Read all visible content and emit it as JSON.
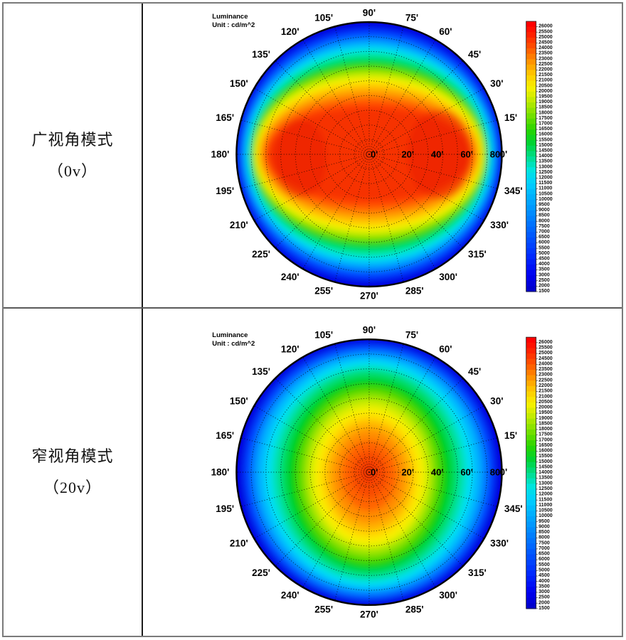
{
  "table": {
    "rows": [
      {
        "mode_label_line1": "广视角模式",
        "mode_label_line2": "（0v）"
      },
      {
        "mode_label_line1": "窄视角模式",
        "mode_label_line2": "（20v）"
      }
    ]
  },
  "chart_data": [
    {
      "type": "heatmap",
      "projection": "polar",
      "mode": "wide-viewing-angle-0v",
      "title": "Luminance",
      "unit_label": "Unit : cd/m^2",
      "angle_step_deg": 15,
      "angle_tick_labels": [
        "0'",
        "15'",
        "30'",
        "45'",
        "60'",
        "75'",
        "90'",
        "105'",
        "120'",
        "135'",
        "150'",
        "165'",
        "180'",
        "195'",
        "210'",
        "225'",
        "240'",
        "255'",
        "270'",
        "285'",
        "300'",
        "315'",
        "330'",
        "345'"
      ],
      "radial_axis": {
        "min_deg": 0,
        "max_deg": 90,
        "grid_step_deg": 10,
        "tick_values": [
          0,
          20,
          40,
          60,
          80
        ],
        "tick_labels": [
          "0'",
          "20'",
          "40'",
          "60'",
          "80'"
        ]
      },
      "grid": true,
      "center_luminance_cd_m2": 25000,
      "edge_luminance_cd_m2": 2000,
      "iso_bands": [
        {
          "luminance": 2000,
          "color": "#0000E0",
          "rx": 1.05,
          "ry": 1.05,
          "dy": 0
        },
        {
          "luminance": 4500,
          "color": "#0038FF",
          "rx": 0.985,
          "ry": 0.95,
          "dy": 0
        },
        {
          "luminance": 8000,
          "color": "#0078FF",
          "rx": 0.962,
          "ry": 0.9,
          "dy": 0
        },
        {
          "luminance": 10500,
          "color": "#00B4FF",
          "rx": 0.942,
          "ry": 0.855,
          "dy": 0
        },
        {
          "luminance": 12000,
          "color": "#00E4E8",
          "rx": 0.922,
          "ry": 0.81,
          "dy": 0
        },
        {
          "luminance": 13500,
          "color": "#00E488",
          "rx": 0.906,
          "ry": 0.765,
          "dy": 0
        },
        {
          "luminance": 15500,
          "color": "#00D428",
          "rx": 0.893,
          "ry": 0.715,
          "dy": 0
        },
        {
          "luminance": 17000,
          "color": "#68DC00",
          "rx": 0.88,
          "ry": 0.668,
          "dy": 0
        },
        {
          "luminance": 18200,
          "color": "#C0EA00",
          "rx": 0.868,
          "ry": 0.625,
          "dy": 0
        },
        {
          "luminance": 19300,
          "color": "#F6F000",
          "rx": 0.856,
          "ry": 0.585,
          "dy": 0
        },
        {
          "luminance": 20500,
          "color": "#FFCC00",
          "rx": 0.842,
          "ry": 0.542,
          "dy": 0
        },
        {
          "luminance": 21600,
          "color": "#FFA000",
          "rx": 0.824,
          "ry": 0.497,
          "dy": 0
        },
        {
          "luminance": 22600,
          "color": "#FF7000",
          "rx": 0.802,
          "ry": 0.448,
          "dy": 0
        },
        {
          "luminance": 23600,
          "color": "#FF4400",
          "rx": 0.78,
          "ry": 0.398,
          "dy": 0
        },
        {
          "luminance": 24600,
          "color": "#F63000",
          "rx": 0.758,
          "ry": 0.348,
          "dy": 0
        }
      ],
      "hot_spots": [
        {
          "luminance": 25500,
          "color": "#E82000",
          "dx": -0.52,
          "dy": 0.03,
          "rx": 0.2,
          "ry": 0.3,
          "opacity": 0.5
        },
        {
          "luminance": 25500,
          "color": "#E82000",
          "dx": 0.53,
          "dy": 0.0,
          "rx": 0.24,
          "ry": 0.34,
          "opacity": 0.5
        }
      ],
      "colorbar": {
        "max": 26000,
        "min": 1500,
        "step": 500,
        "labels": [
          "26000",
          "25500",
          "25000",
          "24500",
          "24000",
          "23500",
          "23000",
          "22500",
          "22000",
          "21500",
          "21000",
          "20500",
          "20000",
          "19500",
          "19000",
          "18500",
          "18000",
          "17500",
          "17000",
          "16500",
          "16000",
          "15500",
          "15000",
          "14500",
          "14000",
          "13500",
          "13000",
          "12500",
          "12000",
          "11500",
          "11000",
          "10500",
          "10000",
          "9500",
          "9000",
          "8500",
          "8000",
          "7500",
          "7000",
          "6500",
          "6000",
          "5500",
          "5000",
          "4500",
          "4000",
          "3500",
          "3000",
          "2500",
          "2000",
          "1500"
        ],
        "gradient_stops": [
          [
            0.0,
            "#0000CC"
          ],
          [
            0.05,
            "#0000F0"
          ],
          [
            0.12,
            "#0028FF"
          ],
          [
            0.22,
            "#0064FF"
          ],
          [
            0.32,
            "#00A0FF"
          ],
          [
            0.4,
            "#00D0FF"
          ],
          [
            0.45,
            "#00E4DC"
          ],
          [
            0.5,
            "#00DC88"
          ],
          [
            0.55,
            "#00D232"
          ],
          [
            0.6,
            "#28D400"
          ],
          [
            0.66,
            "#7CE000"
          ],
          [
            0.72,
            "#CCEC00"
          ],
          [
            0.76,
            "#F8F000"
          ],
          [
            0.81,
            "#FFC800"
          ],
          [
            0.86,
            "#FF9000"
          ],
          [
            0.91,
            "#FF5400"
          ],
          [
            0.96,
            "#FF2000"
          ],
          [
            1.0,
            "#FF0000"
          ]
        ]
      }
    },
    {
      "type": "heatmap",
      "projection": "polar",
      "mode": "narrow-viewing-angle-20v",
      "title": "Luminance",
      "unit_label": "Unit : cd/m^2",
      "angle_step_deg": 15,
      "angle_tick_labels": [
        "0'",
        "15'",
        "30'",
        "45'",
        "60'",
        "75'",
        "90'",
        "105'",
        "120'",
        "135'",
        "150'",
        "165'",
        "180'",
        "195'",
        "210'",
        "225'",
        "240'",
        "255'",
        "270'",
        "285'",
        "300'",
        "315'",
        "330'",
        "345'"
      ],
      "radial_axis": {
        "min_deg": 0,
        "max_deg": 90,
        "grid_step_deg": 10,
        "tick_values": [
          0,
          20,
          40,
          60,
          80
        ],
        "tick_labels": [
          "0'",
          "20'",
          "40'",
          "60'",
          "80'"
        ]
      },
      "grid": true,
      "center_luminance_cd_m2": 23800,
      "edge_luminance_cd_m2": 2000,
      "iso_bands": [
        {
          "luminance": 2000,
          "color": "#0000E0",
          "rx": 1.05,
          "ry": 1.05,
          "dy": 0
        },
        {
          "luminance": 5000,
          "color": "#0040FF",
          "rx": 0.945,
          "ry": 0.965,
          "dy": 0
        },
        {
          "luminance": 8000,
          "color": "#0080FF",
          "rx": 0.895,
          "ry": 0.928,
          "dy": 0.005
        },
        {
          "luminance": 10000,
          "color": "#00B8FF",
          "rx": 0.845,
          "ry": 0.888,
          "dy": 0.005
        },
        {
          "luminance": 11500,
          "color": "#00E0F4",
          "rx": 0.785,
          "ry": 0.85,
          "dy": 0.01
        },
        {
          "luminance": 12600,
          "color": "#00E2B0",
          "rx": 0.73,
          "ry": 0.81,
          "dy": 0.01
        },
        {
          "luminance": 13800,
          "color": "#00DC64",
          "rx": 0.675,
          "ry": 0.77,
          "dy": 0.01
        },
        {
          "luminance": 15200,
          "color": "#00D014",
          "rx": 0.62,
          "ry": 0.72,
          "dy": 0.015
        },
        {
          "luminance": 16800,
          "color": "#50D800",
          "rx": 0.55,
          "ry": 0.667,
          "dy": 0.02
        },
        {
          "luminance": 17800,
          "color": "#98E400",
          "rx": 0.5,
          "ry": 0.615,
          "dy": 0.02
        },
        {
          "luminance": 18600,
          "color": "#D0EC00",
          "rx": 0.458,
          "ry": 0.562,
          "dy": 0.02
        },
        {
          "luminance": 19400,
          "color": "#F8F000",
          "rx": 0.418,
          "ry": 0.518,
          "dy": 0.03
        },
        {
          "luminance": 20300,
          "color": "#FFD800",
          "rx": 0.373,
          "ry": 0.468,
          "dy": 0.03
        },
        {
          "luminance": 21200,
          "color": "#FFB000",
          "rx": 0.326,
          "ry": 0.415,
          "dy": 0.03
        },
        {
          "luminance": 22100,
          "color": "#FF8C00",
          "rx": 0.272,
          "ry": 0.35,
          "dy": 0.03
        },
        {
          "luminance": 22900,
          "color": "#FF6400",
          "rx": 0.208,
          "ry": 0.268,
          "dy": 0.025
        },
        {
          "luminance": 23500,
          "color": "#F84C00",
          "rx": 0.138,
          "ry": 0.178,
          "dy": 0.015
        },
        {
          "luminance": 24000,
          "color": "#F23800",
          "rx": 0.068,
          "ry": 0.088,
          "dy": 0
        }
      ],
      "hot_spots": [],
      "colorbar": {
        "max": 26000,
        "min": 1500,
        "step": 500,
        "labels": [
          "26000",
          "25500",
          "25000",
          "24500",
          "24000",
          "23500",
          "23000",
          "22500",
          "22000",
          "21500",
          "21000",
          "20500",
          "20000",
          "19500",
          "19000",
          "18500",
          "18000",
          "17500",
          "17000",
          "16500",
          "16000",
          "15500",
          "15000",
          "14500",
          "14000",
          "13500",
          "13000",
          "12500",
          "12000",
          "11500",
          "11000",
          "10500",
          "10000",
          "9500",
          "9000",
          "8500",
          "8000",
          "7500",
          "7000",
          "6500",
          "6000",
          "5500",
          "5000",
          "4500",
          "4000",
          "3500",
          "3000",
          "2500",
          "2000",
          "1500"
        ],
        "gradient_stops": [
          [
            0.0,
            "#0000CC"
          ],
          [
            0.05,
            "#0000F0"
          ],
          [
            0.12,
            "#0028FF"
          ],
          [
            0.22,
            "#0064FF"
          ],
          [
            0.32,
            "#00A0FF"
          ],
          [
            0.4,
            "#00D0FF"
          ],
          [
            0.45,
            "#00E4DC"
          ],
          [
            0.5,
            "#00DC88"
          ],
          [
            0.55,
            "#00D232"
          ],
          [
            0.6,
            "#28D400"
          ],
          [
            0.66,
            "#7CE000"
          ],
          [
            0.72,
            "#CCEC00"
          ],
          [
            0.76,
            "#F8F000"
          ],
          [
            0.81,
            "#FFC800"
          ],
          [
            0.86,
            "#FF9000"
          ],
          [
            0.91,
            "#FF5400"
          ],
          [
            0.96,
            "#FF2000"
          ],
          [
            1.0,
            "#FF0000"
          ]
        ]
      }
    }
  ]
}
